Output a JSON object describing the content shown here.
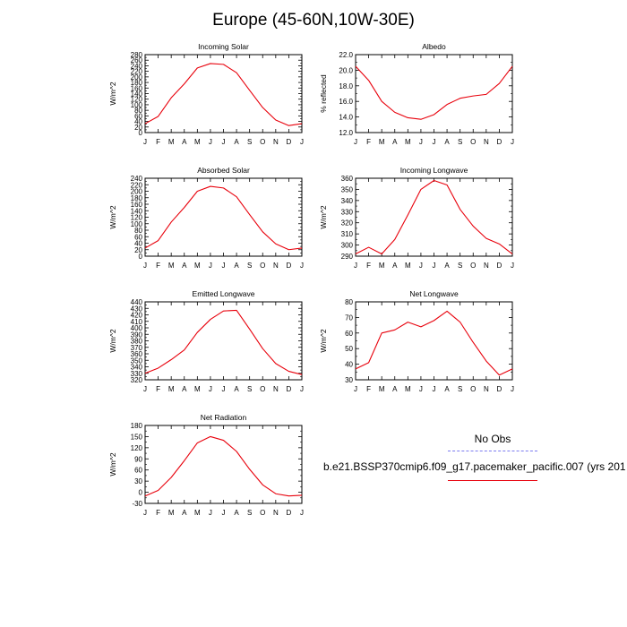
{
  "figure": {
    "title": "Europe (45-60N,10W-30E)"
  },
  "legend": {
    "obs_label": "No Obs",
    "run_label": "b.e21.BSSP370cmip6.f09_g17.pacemaker_pacific.007 (yrs 201",
    "obs_color": "#7b7bf0",
    "model_color": "#e8000b"
  },
  "chart_data": [
    {
      "type": "line",
      "title": "Incoming Solar",
      "ylabel": "W/m^2",
      "xlabel": "",
      "categories": [
        "J",
        "F",
        "M",
        "A",
        "M",
        "J",
        "J",
        "A",
        "S",
        "O",
        "N",
        "D",
        "J"
      ],
      "ylim": [
        0,
        280
      ],
      "yticks": [
        0,
        20,
        40,
        60,
        80,
        100,
        120,
        140,
        160,
        180,
        200,
        220,
        240,
        260,
        280
      ],
      "series": [
        {
          "values": [
            32,
            58,
            125,
            175,
            232,
            248,
            245,
            215,
            152,
            90,
            45,
            25,
            32
          ]
        }
      ]
    },
    {
      "type": "line",
      "title": "Albedo",
      "ylabel": "% reflected",
      "xlabel": "",
      "categories": [
        "J",
        "F",
        "M",
        "A",
        "M",
        "J",
        "J",
        "A",
        "S",
        "O",
        "N",
        "D",
        "J"
      ],
      "ylim": [
        12.0,
        22.0
      ],
      "yticks": [
        "12.0",
        "14.0",
        "16.0",
        "18.0",
        "20.0",
        "22.0"
      ],
      "series": [
        {
          "values": [
            20.5,
            18.7,
            16.0,
            14.6,
            13.9,
            13.7,
            14.3,
            15.6,
            16.4,
            16.7,
            16.9,
            18.3,
            20.5
          ]
        }
      ]
    },
    {
      "type": "line",
      "title": "Absorbed Solar",
      "ylabel": "W/m^2",
      "xlabel": "",
      "categories": [
        "J",
        "F",
        "M",
        "A",
        "M",
        "J",
        "J",
        "A",
        "S",
        "O",
        "N",
        "D",
        "J"
      ],
      "ylim": [
        0,
        240
      ],
      "yticks": [
        0,
        20,
        40,
        60,
        80,
        100,
        120,
        140,
        160,
        180,
        200,
        220,
        240
      ],
      "series": [
        {
          "values": [
            25,
            48,
            105,
            150,
            200,
            215,
            210,
            183,
            128,
            75,
            38,
            20,
            25
          ]
        }
      ]
    },
    {
      "type": "line",
      "title": "Incoming Longwave",
      "ylabel": "W/m^2",
      "xlabel": "",
      "categories": [
        "J",
        "F",
        "M",
        "A",
        "M",
        "J",
        "J",
        "A",
        "S",
        "O",
        "N",
        "D",
        "J"
      ],
      "ylim": [
        290,
        360
      ],
      "yticks": [
        290,
        300,
        310,
        320,
        330,
        340,
        350,
        360
      ],
      "series": [
        {
          "values": [
            292,
            298,
            292,
            305,
            327,
            350,
            358,
            354,
            332,
            317,
            306,
            301,
            292
          ]
        }
      ]
    },
    {
      "type": "line",
      "title": "Emitted Longwave",
      "ylabel": "W/m^2",
      "xlabel": "",
      "categories": [
        "J",
        "F",
        "M",
        "A",
        "M",
        "J",
        "J",
        "A",
        "S",
        "O",
        "N",
        "D",
        "J"
      ],
      "ylim": [
        320,
        440
      ],
      "yticks": [
        320,
        330,
        340,
        350,
        360,
        370,
        380,
        390,
        400,
        410,
        420,
        430,
        440
      ],
      "series": [
        {
          "values": [
            330,
            338,
            351,
            366,
            393,
            413,
            426,
            427,
            398,
            368,
            345,
            333,
            328
          ]
        }
      ]
    },
    {
      "type": "line",
      "title": "Net Longwave",
      "ylabel": "W/m^2",
      "xlabel": "",
      "categories": [
        "J",
        "F",
        "M",
        "A",
        "M",
        "J",
        "J",
        "A",
        "S",
        "O",
        "N",
        "D",
        "J"
      ],
      "ylim": [
        30,
        80
      ],
      "yticks": [
        30,
        40,
        50,
        60,
        70,
        80
      ],
      "series": [
        {
          "values": [
            37,
            41,
            60,
            62,
            67,
            64,
            68,
            74,
            67,
            54,
            42,
            33,
            37
          ]
        }
      ]
    },
    {
      "type": "line",
      "title": "Net Radiation",
      "ylabel": "W/m^2",
      "xlabel": "",
      "categories": [
        "J",
        "F",
        "M",
        "A",
        "M",
        "J",
        "J",
        "A",
        "S",
        "O",
        "N",
        "D",
        "J"
      ],
      "ylim": [
        -30,
        180
      ],
      "yticks": [
        -30,
        0,
        30,
        60,
        90,
        120,
        150,
        180
      ],
      "series": [
        {
          "values": [
            -10,
            5,
            40,
            85,
            133,
            150,
            140,
            110,
            62,
            20,
            -4,
            -10,
            -8
          ]
        }
      ]
    }
  ]
}
